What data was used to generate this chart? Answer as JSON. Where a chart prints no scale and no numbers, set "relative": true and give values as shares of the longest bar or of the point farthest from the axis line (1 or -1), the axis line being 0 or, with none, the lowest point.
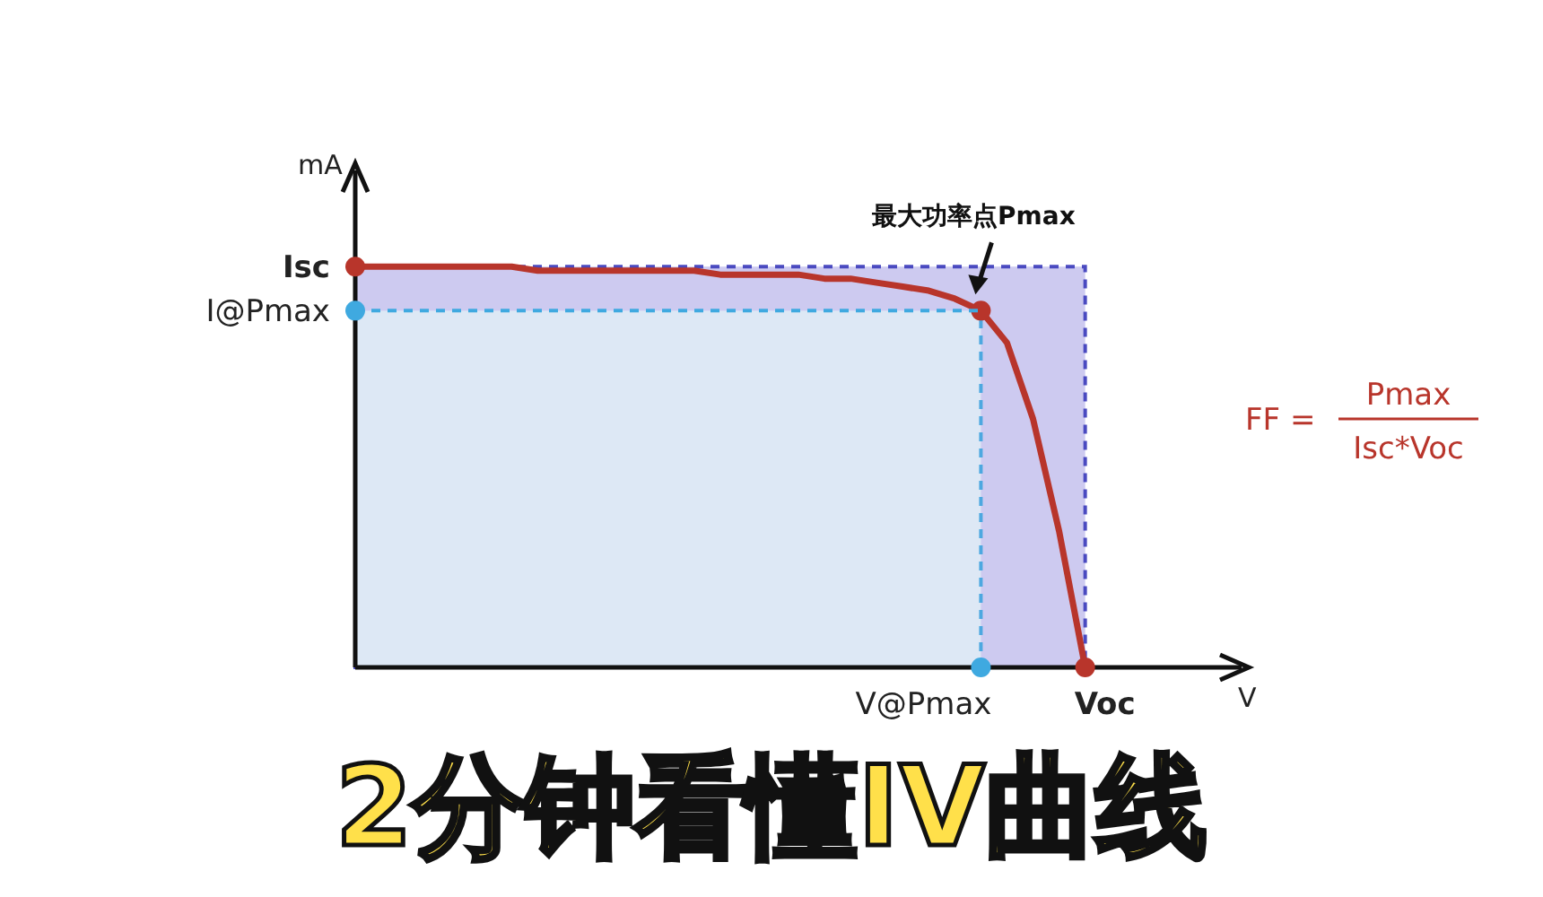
{
  "chart_data": {
    "type": "line",
    "title": "2分钟看懂IV曲线",
    "xlabel": "V",
    "ylabel": "mA",
    "relative": true,
    "categories": [
      null,
      null,
      null,
      null,
      null,
      null,
      null,
      null,
      null,
      null,
      null,
      null,
      null,
      null,
      null,
      null,
      null,
      null,
      null,
      null,
      null,
      null,
      null,
      null,
      null,
      null,
      null,
      null,
      null,
      null,
      null,
      null,
      null,
      null,
      null
    ],
    "ref_lines": [
      {
        "axis": "y",
        "value": 0.89,
        "color": "#3fa9e0",
        "line_style": "dashed"
      }
    ],
    "annotations": [
      "最大功率点Pmax",
      "FF =",
      "Pmax",
      "Isc*Voc",
      "Isc",
      "I@Pmax",
      "V@Pmax",
      "Voc"
    ],
    "series": [
      {
        "color": "#b8352b",
        "values": [
          1,
          1,
          1,
          1,
          1,
          1,
          1,
          0.99,
          0.99,
          0.99,
          0.99,
          0.99,
          0.99,
          0.99,
          0.98,
          0.98,
          0.98,
          0.98,
          0.97,
          0.97,
          0.96,
          0.95,
          0.94,
          0.92,
          0.89,
          0.81,
          0.62,
          0.34,
          0,
          null,
          null,
          null,
          null,
          null,
          null
        ]
      }
    ]
  }
}
